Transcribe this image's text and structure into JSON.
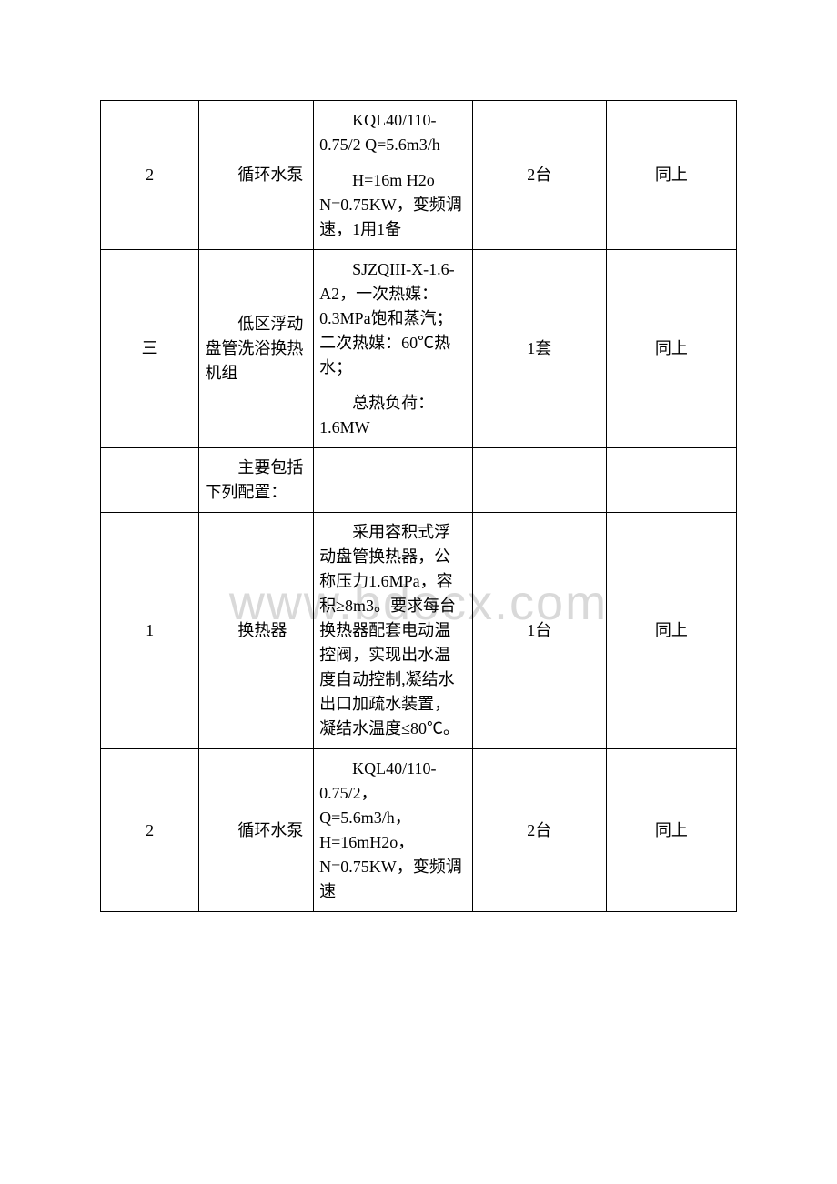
{
  "watermark": "www.bdocx.com",
  "rows": [
    {
      "c1": "2",
      "c2_indent": "循环水泵",
      "c3_blocks": [
        {
          "indent": true,
          "text": "KQL40/110-0.75/2 Q=5.6m3/h"
        },
        {
          "indent": true,
          "text": "H=16m H2o N=0.75KW，变频调速，1用1备"
        }
      ],
      "c4": "2台",
      "c5": "同上"
    },
    {
      "c1": "三",
      "c2_indent": "低区浮动盘管洗浴换热机组",
      "c3_blocks": [
        {
          "indent": true,
          "text": "SJZQIII-X-1.6-A2，一次热媒：0.3MPa饱和蒸汽；二次热媒：60℃热水；"
        },
        {
          "indent": true,
          "text": "总热负荷：1.6MW"
        }
      ],
      "c4": "1套",
      "c5": "同上"
    },
    {
      "c1": "",
      "c2_indent": "主要包括下列配置：",
      "c3_blocks": [],
      "c4": "",
      "c5": ""
    },
    {
      "c1": "1",
      "c2_indent": "换热器",
      "c3_blocks": [
        {
          "indent": true,
          "text": "采用容积式浮动盘管换热器，公称压力1.6MPa，容积≥8m3。要求每台换热器配套电动温控阀，实现出水温度自动控制,凝结水出口加疏水装置，凝结水温度≤80℃。"
        }
      ],
      "c4": "1台",
      "c5": "同上"
    },
    {
      "c1": "2",
      "c2_indent": "循环水泵",
      "c3_blocks": [
        {
          "indent": true,
          "text": "KQL40/110-0.75/2，Q=5.6m3/h，H=16mH2o，N=0.75KW，变频调速"
        }
      ],
      "c4": "2台",
      "c5": "同上"
    }
  ]
}
